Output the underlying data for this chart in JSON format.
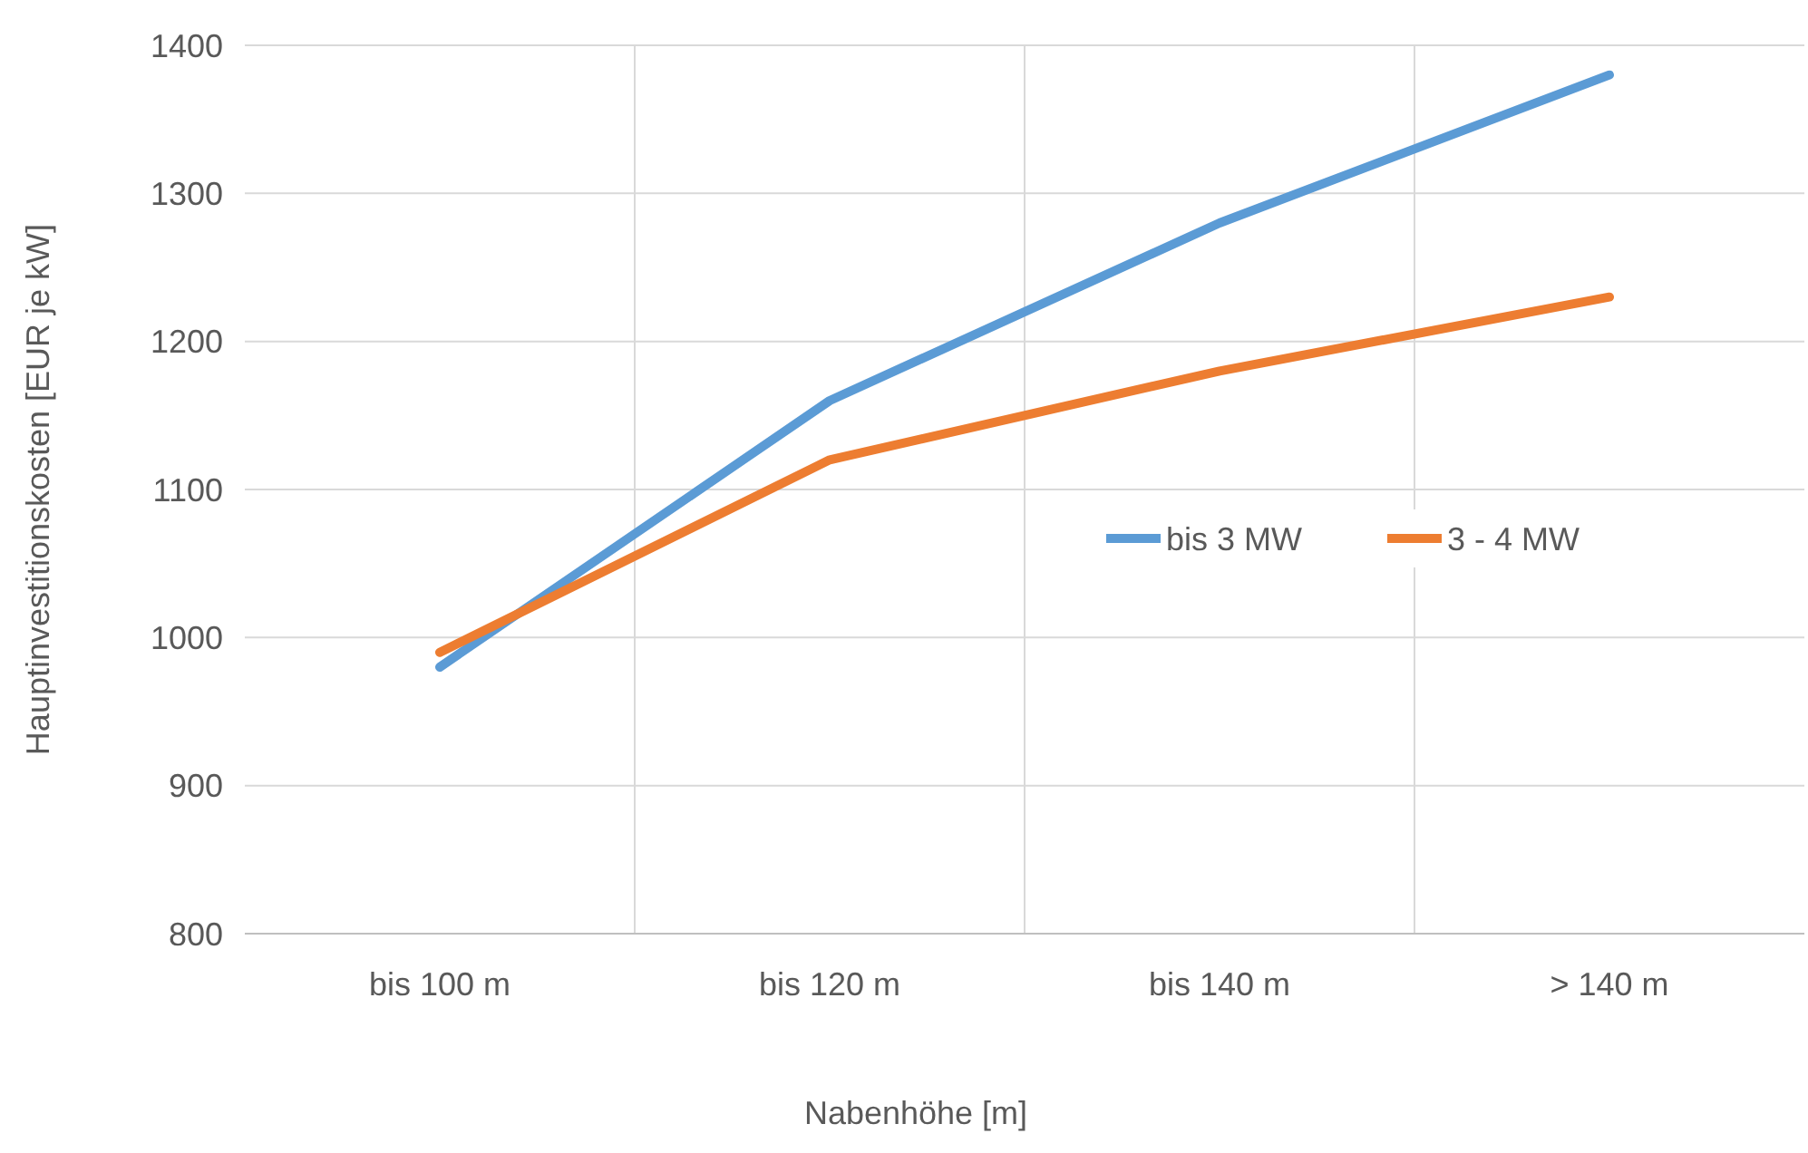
{
  "chart_data": {
    "type": "line",
    "xlabel": "Nabenhöhe [m]",
    "ylabel": "Hauptinvestitionskosten [EUR je kW]",
    "categories": [
      "bis 100 m",
      "bis 120 m",
      "bis 140 m",
      "> 140 m"
    ],
    "series": [
      {
        "name": "bis 3 MW",
        "color": "#5b9bd5",
        "values": [
          980,
          1160,
          1280,
          1380
        ]
      },
      {
        "name": "3 - 4 MW",
        "color": "#ed7d31",
        "values": [
          990,
          1120,
          1180,
          1230
        ]
      }
    ],
    "ylim": [
      800,
      1400
    ],
    "yticks": [
      800,
      900,
      1000,
      1100,
      1200,
      1300,
      1400
    ],
    "grid": true,
    "legend": "right",
    "marker": "none",
    "line_style": "solid"
  }
}
